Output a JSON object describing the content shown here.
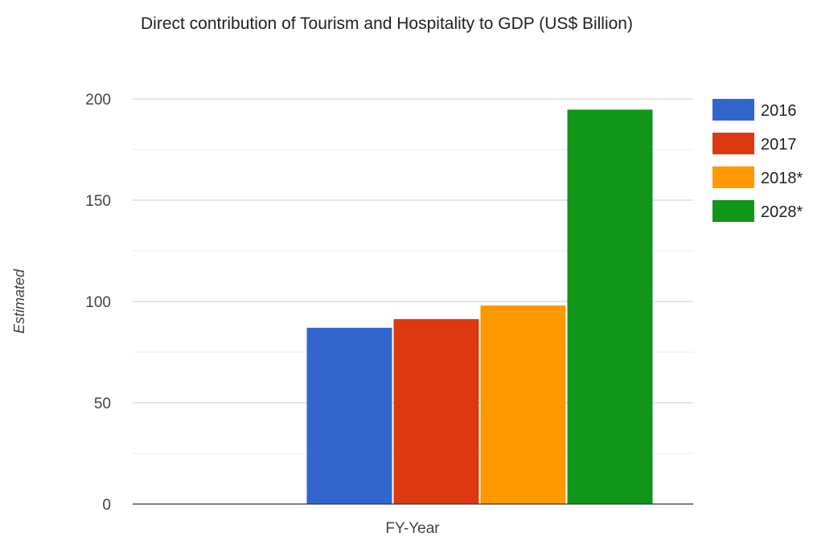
{
  "chart_data": {
    "type": "bar",
    "title": "Direct contribution of Tourism and Hospitality to GDP (US$ Billion)",
    "xlabel": "FY-Year",
    "ylabel": "Estimated",
    "categories": [
      "FY-Year"
    ],
    "series": [
      {
        "name": "2016",
        "values": [
          87.0
        ],
        "color": "#3366cc"
      },
      {
        "name": "2017",
        "values": [
          91.3
        ],
        "color": "#dc3912"
      },
      {
        "name": "2018*",
        "values": [
          98.0
        ],
        "color": "#ff9900"
      },
      {
        "name": "2028*",
        "values": [
          194.7
        ],
        "color": "#109618"
      }
    ],
    "ylim": [
      0,
      200
    ],
    "yticks": [
      0,
      50,
      100,
      150,
      200
    ],
    "grid": true,
    "legend_position": "right"
  }
}
